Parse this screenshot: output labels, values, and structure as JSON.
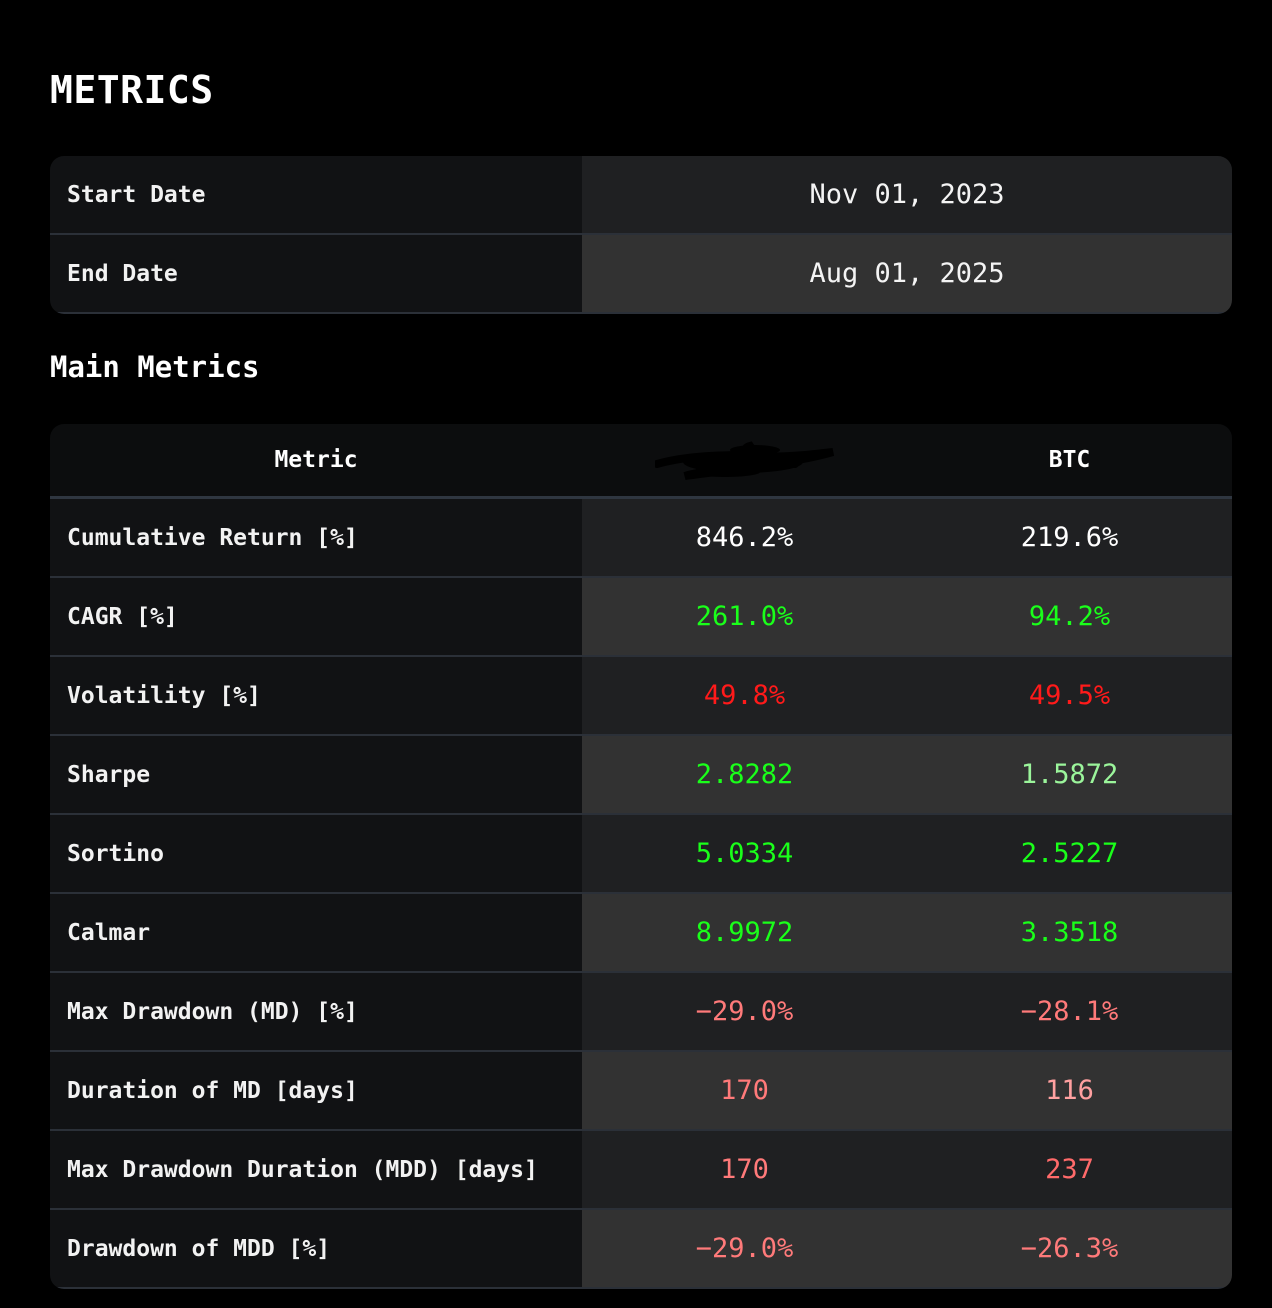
{
  "page": {
    "title": "METRICS",
    "section_title": "Main Metrics"
  },
  "dates": [
    {
      "label": "Start Date",
      "value": "Nov 01, 2023"
    },
    {
      "label": "End Date",
      "value": "Aug 01, 2025"
    }
  ],
  "metrics_table": {
    "headers": {
      "metric": "Metric",
      "strategy": "",
      "btc": "BTC"
    },
    "rows": [
      {
        "label": "Cumulative Return [%]",
        "strategy": "846.2%",
        "btc": "219.6%",
        "strategy_color": "#ffffff",
        "btc_color": "#ffffff"
      },
      {
        "label": "CAGR [%]",
        "strategy": "261.0%",
        "btc": "94.2%",
        "strategy_color": "#1aff1a",
        "btc_color": "#1aff1a"
      },
      {
        "label": "Volatility [%]",
        "strategy": "49.8%",
        "btc": "49.5%",
        "strategy_color": "#ff1a1a",
        "btc_color": "#ff1a1a"
      },
      {
        "label": "Sharpe",
        "strategy": "2.8282",
        "btc": "1.5872",
        "strategy_color": "#1aff1a",
        "btc_color": "#9bf59b"
      },
      {
        "label": "Sortino",
        "strategy": "5.0334",
        "btc": "2.5227",
        "strategy_color": "#1aff1a",
        "btc_color": "#1aff1a"
      },
      {
        "label": "Calmar",
        "strategy": "8.9972",
        "btc": "3.3518",
        "strategy_color": "#1aff1a",
        "btc_color": "#1aff1a"
      },
      {
        "label": "Max Drawdown (MD) [%]",
        "strategy": "−29.0%",
        "btc": "−28.1%",
        "strategy_color": "#ff7a7a",
        "btc_color": "#ff7a7a"
      },
      {
        "label": "Duration of MD [days]",
        "strategy": "170",
        "btc": "116",
        "strategy_color": "#ff7a7a",
        "btc_color": "#ffa0a0"
      },
      {
        "label": "Max Drawdown Duration (MDD) [days]",
        "strategy": "170",
        "btc": "237",
        "strategy_color": "#ff7a7a",
        "btc_color": "#ff6a6a"
      },
      {
        "label": "Drawdown of MDD [%]",
        "strategy": "−29.0%",
        "btc": "−26.3%",
        "strategy_color": "#ff7a7a",
        "btc_color": "#ff7a7a"
      }
    ]
  }
}
